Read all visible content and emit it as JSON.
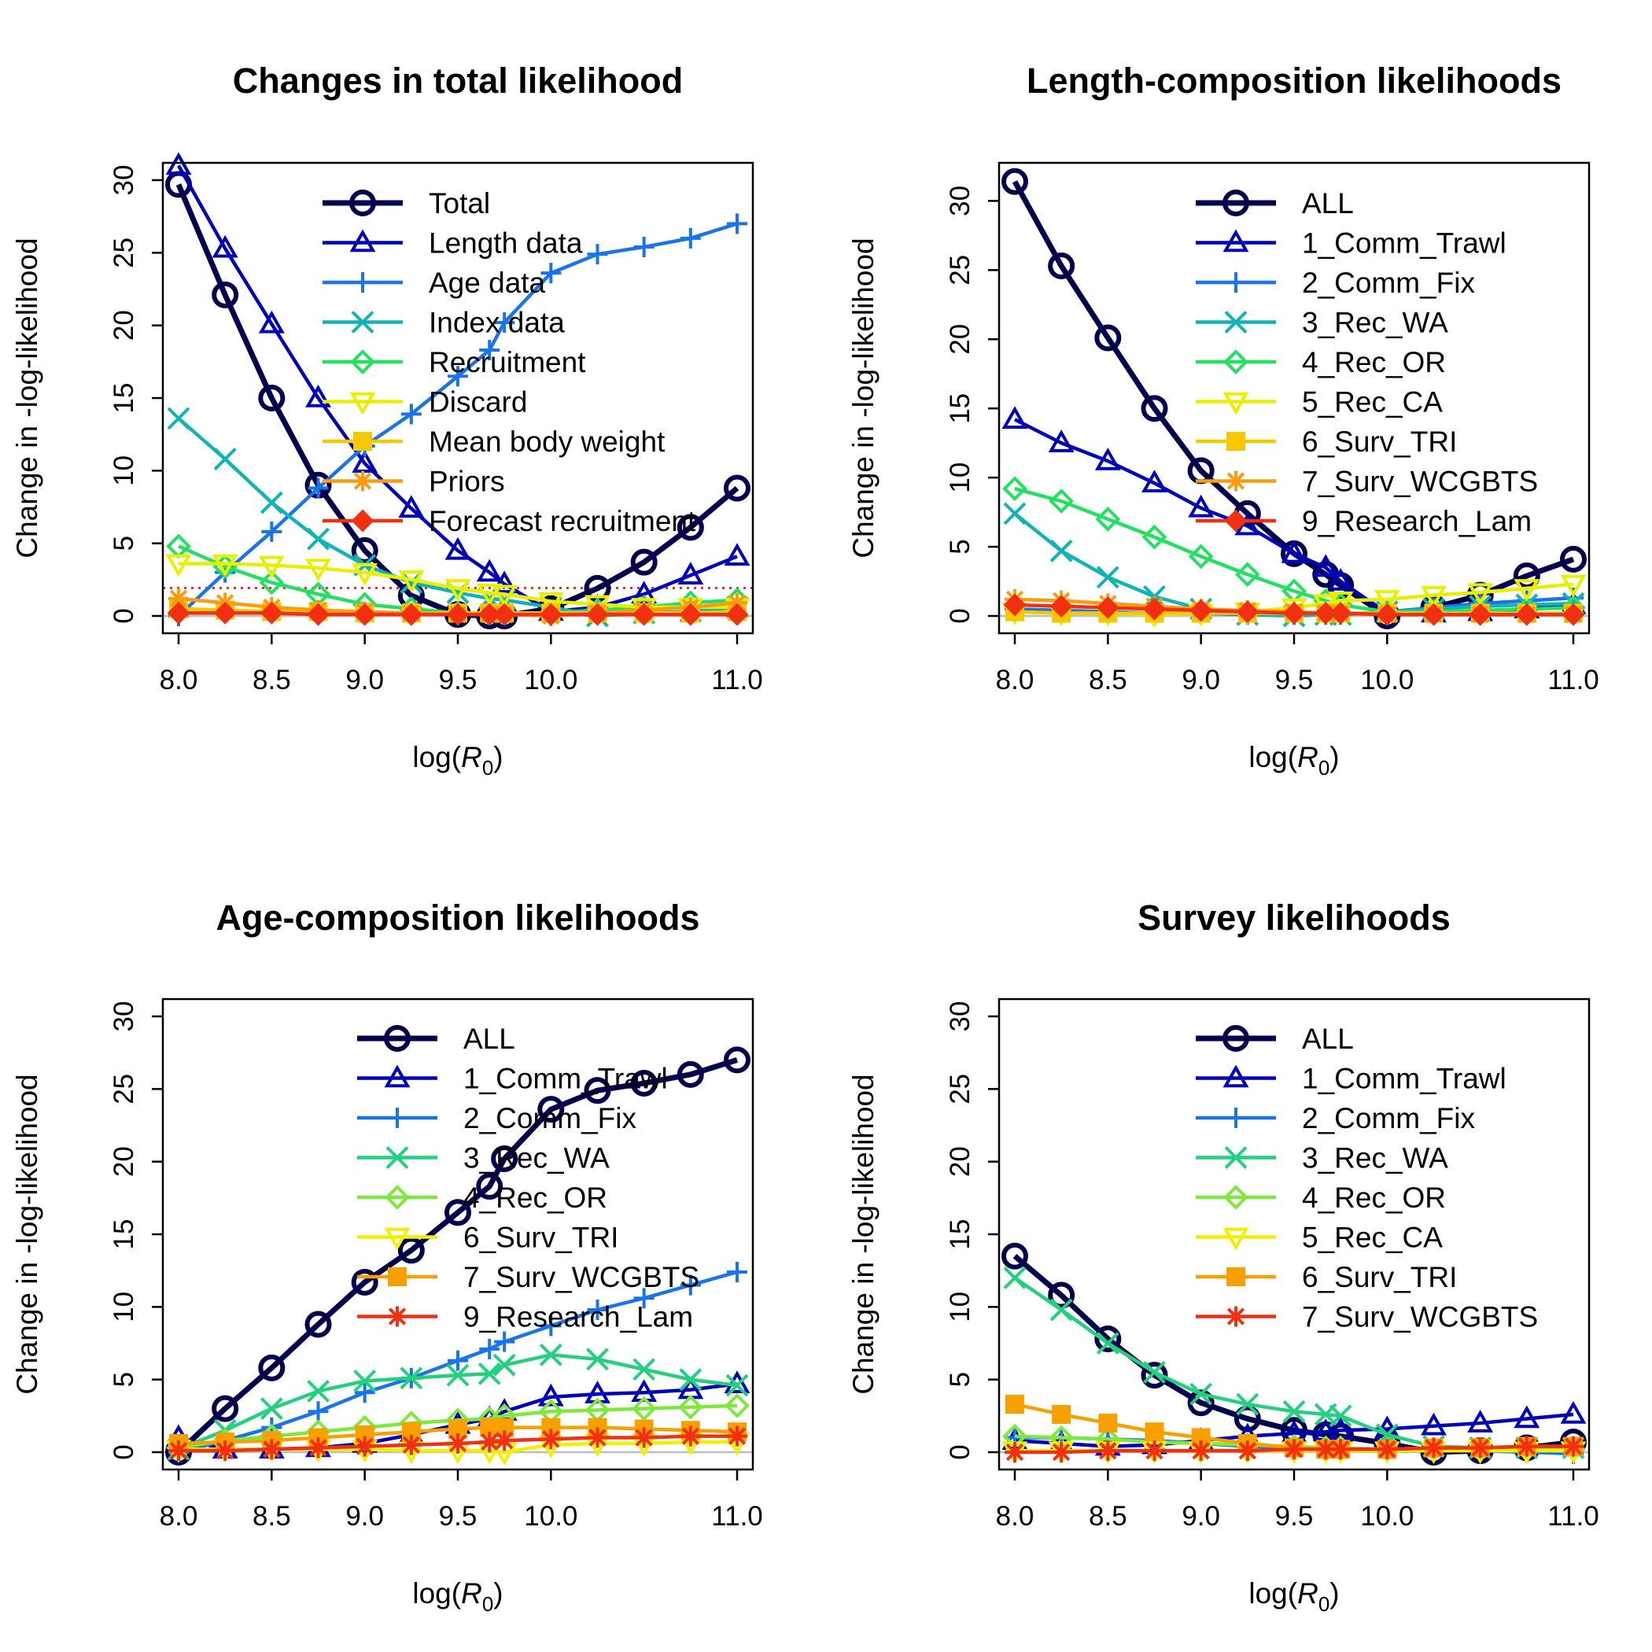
{
  "chart_data": [
    {
      "type": "line",
      "title": "Changes in total likelihood",
      "xlabel": "log(R0)",
      "ylabel": "Change in -log-likelihood",
      "xlim": [
        8.0,
        11.0
      ],
      "ylim": [
        0,
        30
      ],
      "xticks": [
        "8.0",
        "8.5",
        "9.0",
        "9.5",
        "10.0",
        "11.0"
      ],
      "xtick_values": [
        8.0,
        8.5,
        9.0,
        9.5,
        10.0,
        11.0
      ],
      "yticks": [
        "0",
        "5",
        "10",
        "15",
        "20",
        "25",
        "30"
      ],
      "ytick_values": [
        0,
        5,
        10,
        15,
        20,
        25,
        30
      ],
      "x": [
        8.0,
        8.25,
        8.5,
        8.75,
        9.0,
        9.25,
        9.5,
        9.67,
        9.75,
        10.0,
        10.25,
        10.5,
        10.75,
        11.0
      ],
      "reference_line_y": 1.92,
      "legend_position": "top-right",
      "series": [
        {
          "name": "Total",
          "color": "#00004d",
          "marker": "circle",
          "values": [
            29.7,
            22.1,
            15.0,
            9.0,
            4.5,
            1.4,
            0.1,
            0.0,
            0.0,
            0.5,
            1.9,
            3.7,
            6.1,
            8.8
          ]
        },
        {
          "name": "Length data",
          "color": "#0000b8",
          "marker": "triangle",
          "values": [
            31.0,
            25.3,
            20.1,
            15.0,
            10.5,
            7.4,
            4.5,
            3.0,
            2.2,
            0.3,
            0.6,
            1.5,
            2.8,
            4.1
          ]
        },
        {
          "name": "Age data",
          "color": "#1874e8",
          "marker": "plus",
          "values": [
            0.0,
            3.0,
            5.8,
            8.8,
            11.7,
            13.9,
            16.5,
            18.3,
            20.2,
            23.6,
            24.9,
            25.4,
            26.0,
            27.0
          ]
        },
        {
          "name": "Index data",
          "color": "#10b4b4",
          "marker": "x",
          "values": [
            13.6,
            10.8,
            7.8,
            5.3,
            3.5,
            2.3,
            1.6,
            1.2,
            1.1,
            0.6,
            0.0,
            0.2,
            0.3,
            0.6
          ]
        },
        {
          "name": "Recruitment",
          "color": "#22e060",
          "marker": "diamond",
          "values": [
            4.8,
            3.4,
            2.3,
            1.5,
            0.8,
            0.5,
            0.2,
            0.2,
            0.2,
            0.2,
            0.4,
            0.6,
            0.9,
            1.1
          ]
        },
        {
          "name": "Discard",
          "color": "#e8f000",
          "marker": "triangle-down",
          "values": [
            3.6,
            3.6,
            3.5,
            3.3,
            3.0,
            2.5,
            1.9,
            1.6,
            1.5,
            1.0,
            0.8,
            0.6,
            0.6,
            0.6
          ]
        },
        {
          "name": "Mean body weight",
          "color": "#f7c800",
          "marker": "square",
          "values": [
            0.5,
            0.4,
            0.3,
            0.3,
            0.2,
            0.2,
            0.2,
            0.2,
            0.2,
            0.2,
            0.2,
            0.2,
            0.2,
            0.3
          ]
        },
        {
          "name": "Priors",
          "color": "#fb9b10",
          "marker": "star",
          "values": [
            1.2,
            0.9,
            0.6,
            0.4,
            0.3,
            0.2,
            0.1,
            0.1,
            0.1,
            0.0,
            0.2,
            0.4,
            0.6,
            0.9
          ]
        },
        {
          "name": "Forecast recruitment",
          "color": "#f03010",
          "marker": "diamond-filled",
          "values": [
            0.2,
            0.2,
            0.2,
            0.1,
            0.1,
            0.1,
            0.1,
            0.1,
            0.1,
            0.1,
            0.1,
            0.1,
            0.1,
            0.1
          ]
        }
      ]
    },
    {
      "type": "line",
      "title": "Length-composition likelihoods",
      "xlabel": "log(R0)",
      "ylabel": "Change in -log-likelihood",
      "xlim": [
        8.0,
        11.0
      ],
      "ylim": [
        0,
        31.5
      ],
      "xticks": [
        "8.0",
        "8.5",
        "9.0",
        "9.5",
        "10.0",
        "11.0"
      ],
      "xtick_values": [
        8.0,
        8.5,
        9.0,
        9.5,
        10.0,
        11.0
      ],
      "yticks": [
        "0",
        "5",
        "10",
        "15",
        "20",
        "25",
        "30"
      ],
      "ytick_values": [
        0,
        5,
        10,
        15,
        20,
        25,
        30
      ],
      "x": [
        8.0,
        8.25,
        8.5,
        8.75,
        9.0,
        9.25,
        9.5,
        9.67,
        9.75,
        10.0,
        10.25,
        10.5,
        10.75,
        11.0
      ],
      "legend_position": "top-right",
      "series": [
        {
          "name": "ALL",
          "color": "#00004d",
          "marker": "circle",
          "values": [
            31.4,
            25.3,
            20.1,
            15.0,
            10.5,
            7.4,
            4.5,
            3.0,
            2.2,
            0.0,
            0.6,
            1.5,
            2.9,
            4.1
          ]
        },
        {
          "name": "1_Comm_Trawl",
          "color": "#0000b8",
          "marker": "triangle",
          "values": [
            14.2,
            12.5,
            11.2,
            9.6,
            7.8,
            6.5,
            4.5,
            3.5,
            2.5,
            0.2,
            0.2,
            0.3,
            0.5,
            0.8
          ]
        },
        {
          "name": "2_Comm_Fix",
          "color": "#1874e8",
          "marker": "plus",
          "values": [
            0.5,
            0.4,
            0.3,
            0.2,
            0.2,
            0.1,
            0.1,
            0.1,
            0.1,
            0.3,
            0.6,
            0.9,
            1.1,
            1.3
          ]
        },
        {
          "name": "3_Rec_WA",
          "color": "#10b4b4",
          "marker": "x",
          "values": [
            7.4,
            4.7,
            2.8,
            1.4,
            0.5,
            0.1,
            0.0,
            0.1,
            0.1,
            0.3,
            0.5,
            0.7,
            0.8,
            0.9
          ]
        },
        {
          "name": "4_Rec_OR",
          "color": "#22e060",
          "marker": "diamond",
          "values": [
            9.2,
            8.3,
            7.0,
            5.7,
            4.3,
            3.0,
            1.8,
            1.1,
            0.8,
            0.3,
            0.3,
            0.4,
            0.5,
            0.6
          ]
        },
        {
          "name": "5_Rec_CA",
          "color": "#e8f000",
          "marker": "triangle-down",
          "values": [
            0.3,
            0.2,
            0.2,
            0.1,
            0.2,
            0.3,
            0.6,
            0.9,
            1.1,
            1.2,
            1.5,
            1.7,
            2.0,
            2.3
          ]
        },
        {
          "name": "6_Surv_TRI",
          "color": "#f7c800",
          "marker": "square",
          "values": [
            0.3,
            0.2,
            0.2,
            0.2,
            0.2,
            0.2,
            0.2,
            0.2,
            0.2,
            0.2,
            0.2,
            0.2,
            0.2,
            0.2
          ]
        },
        {
          "name": "7_Surv_WCGBTS",
          "color": "#fb9b10",
          "marker": "star",
          "values": [
            1.2,
            1.1,
            0.9,
            0.7,
            0.5,
            0.4,
            0.3,
            0.2,
            0.2,
            0.1,
            0.1,
            0.1,
            0.1,
            0.1
          ]
        },
        {
          "name": "9_Research_Lam",
          "color": "#f03010",
          "marker": "diamond-filled",
          "values": [
            0.8,
            0.7,
            0.6,
            0.5,
            0.4,
            0.3,
            0.2,
            0.2,
            0.2,
            0.1,
            0.1,
            0.1,
            0.1,
            0.1
          ]
        }
      ]
    },
    {
      "type": "line",
      "title": "Age-composition likelihoods",
      "xlabel": "log(R0)",
      "ylabel": "Change in -log-likelihood",
      "xlim": [
        8.0,
        11.0
      ],
      "ylim": [
        0,
        30
      ],
      "xticks": [
        "8.0",
        "8.5",
        "9.0",
        "9.5",
        "10.0",
        "11.0"
      ],
      "xtick_values": [
        8.0,
        8.5,
        9.0,
        9.5,
        10.0,
        11.0
      ],
      "yticks": [
        "0",
        "5",
        "10",
        "15",
        "20",
        "25",
        "30"
      ],
      "ytick_values": [
        0,
        5,
        10,
        15,
        20,
        25,
        30
      ],
      "x": [
        8.0,
        8.25,
        8.5,
        8.75,
        9.0,
        9.25,
        9.5,
        9.67,
        9.75,
        10.0,
        10.25,
        10.5,
        10.75,
        11.0
      ],
      "legend_position": "top-right",
      "series": [
        {
          "name": "ALL",
          "color": "#00004d",
          "marker": "circle",
          "values": [
            0.0,
            3.0,
            5.8,
            8.8,
            11.7,
            13.9,
            16.5,
            18.3,
            20.2,
            23.6,
            24.9,
            25.4,
            26.0,
            27.0
          ]
        },
        {
          "name": "1_Comm_Trawl",
          "color": "#0000b8",
          "marker": "triangle",
          "values": [
            1.0,
            0.2,
            0.2,
            0.3,
            0.6,
            1.2,
            1.9,
            2.3,
            2.8,
            3.8,
            4.0,
            4.1,
            4.3,
            4.7
          ]
        },
        {
          "name": "2_Comm_Fix",
          "color": "#1874e8",
          "marker": "plus",
          "values": [
            0.0,
            0.8,
            1.7,
            2.8,
            4.1,
            5.1,
            6.3,
            7.1,
            7.6,
            8.7,
            9.8,
            10.6,
            11.5,
            12.4
          ]
        },
        {
          "name": "3_Rec_WA",
          "color": "#22d080",
          "marker": "x",
          "values": [
            0.2,
            1.5,
            3.0,
            4.2,
            4.9,
            5.1,
            5.3,
            5.4,
            6.0,
            6.7,
            6.4,
            5.7,
            5.0,
            4.6
          ]
        },
        {
          "name": "4_Rec_OR",
          "color": "#7ee83c",
          "marker": "diamond",
          "values": [
            0.3,
            0.8,
            1.1,
            1.4,
            1.7,
            2.0,
            2.2,
            2.3,
            2.5,
            2.8,
            2.9,
            3.0,
            3.1,
            3.2
          ]
        },
        {
          "name": "6_Surv_TRI",
          "color": "#f0f000",
          "marker": "triangle-down",
          "values": [
            0.2,
            0.2,
            0.2,
            0.2,
            0.2,
            0.1,
            0.1,
            0.1,
            0.0,
            0.5,
            0.6,
            0.6,
            0.7,
            0.7
          ]
        },
        {
          "name": "7_Surv_WCGBTS",
          "color": "#f7a000",
          "marker": "square",
          "values": [
            0.6,
            0.7,
            0.8,
            1.0,
            1.2,
            1.4,
            1.6,
            1.7,
            1.7,
            1.7,
            1.7,
            1.6,
            1.5,
            1.4
          ]
        },
        {
          "name": "9_Research_Lam",
          "color": "#f03010",
          "marker": "star",
          "values": [
            0.1,
            0.1,
            0.2,
            0.3,
            0.4,
            0.5,
            0.6,
            0.7,
            0.8,
            0.9,
            1.0,
            1.0,
            1.1,
            1.1
          ]
        }
      ]
    },
    {
      "type": "line",
      "title": "Survey likelihoods",
      "xlabel": "log(R0)",
      "ylabel": "Change in -log-likelihood",
      "xlim": [
        8.0,
        11.0
      ],
      "ylim": [
        0,
        30
      ],
      "xticks": [
        "8.0",
        "8.5",
        "9.0",
        "9.5",
        "10.0",
        "11.0"
      ],
      "xtick_values": [
        8.0,
        8.5,
        9.0,
        9.5,
        10.0,
        11.0
      ],
      "yticks": [
        "0",
        "5",
        "10",
        "15",
        "20",
        "25",
        "30"
      ],
      "ytick_values": [
        0,
        5,
        10,
        15,
        20,
        25,
        30
      ],
      "x": [
        8.0,
        8.25,
        8.5,
        8.75,
        9.0,
        9.25,
        9.5,
        9.67,
        9.75,
        10.0,
        10.25,
        10.5,
        10.75,
        11.0
      ],
      "legend_position": "top-right",
      "series": [
        {
          "name": "ALL",
          "color": "#00004d",
          "marker": "circle",
          "values": [
            13.5,
            10.8,
            7.8,
            5.3,
            3.4,
            2.3,
            1.5,
            1.2,
            1.1,
            0.6,
            0.0,
            0.1,
            0.3,
            0.7
          ]
        },
        {
          "name": "1_Comm_Trawl",
          "color": "#0000b8",
          "marker": "triangle",
          "values": [
            0.8,
            0.6,
            0.4,
            0.5,
            0.8,
            1.1,
            1.3,
            1.4,
            1.5,
            1.6,
            1.8,
            2.0,
            2.3,
            2.6
          ]
        },
        {
          "name": "2_Comm_Fix",
          "color": "#1874e8",
          "marker": "plus",
          "values": [
            1.0,
            1.0,
            0.9,
            0.8,
            0.6,
            0.4,
            0.3,
            0.2,
            0.2,
            0.1,
            0.1,
            0.1,
            0.0,
            -0.1
          ]
        },
        {
          "name": "3_Rec_WA",
          "color": "#22d080",
          "marker": "x",
          "values": [
            12.0,
            9.8,
            7.5,
            5.5,
            4.0,
            3.3,
            2.8,
            2.6,
            2.5,
            1.2,
            0.4,
            0.3,
            0.3,
            0.3
          ]
        },
        {
          "name": "4_Rec_OR",
          "color": "#7ee83c",
          "marker": "diamond",
          "values": [
            1.1,
            1.0,
            0.9,
            0.7,
            0.6,
            0.5,
            0.4,
            0.3,
            0.3,
            0.2,
            0.2,
            0.2,
            0.2,
            0.2
          ]
        },
        {
          "name": "5_Rec_CA",
          "color": "#f0f000",
          "marker": "triangle-down",
          "values": [
            0.1,
            0.1,
            0.1,
            0.1,
            0.1,
            0.1,
            0.1,
            0.1,
            0.1,
            0.1,
            0.1,
            0.1,
            0.1,
            0.1
          ]
        },
        {
          "name": "6_Surv_TRI",
          "color": "#f7a000",
          "marker": "square",
          "values": [
            3.3,
            2.6,
            2.0,
            1.4,
            1.0,
            0.6,
            0.3,
            0.2,
            0.2,
            0.2,
            0.3,
            0.3,
            0.4,
            0.4
          ]
        },
        {
          "name": "7_Surv_WCGBTS",
          "color": "#f03010",
          "marker": "star",
          "values": [
            0.0,
            0.0,
            0.1,
            0.1,
            0.1,
            0.1,
            0.2,
            0.2,
            0.2,
            0.2,
            0.3,
            0.3,
            0.4,
            0.4
          ]
        }
      ]
    }
  ]
}
